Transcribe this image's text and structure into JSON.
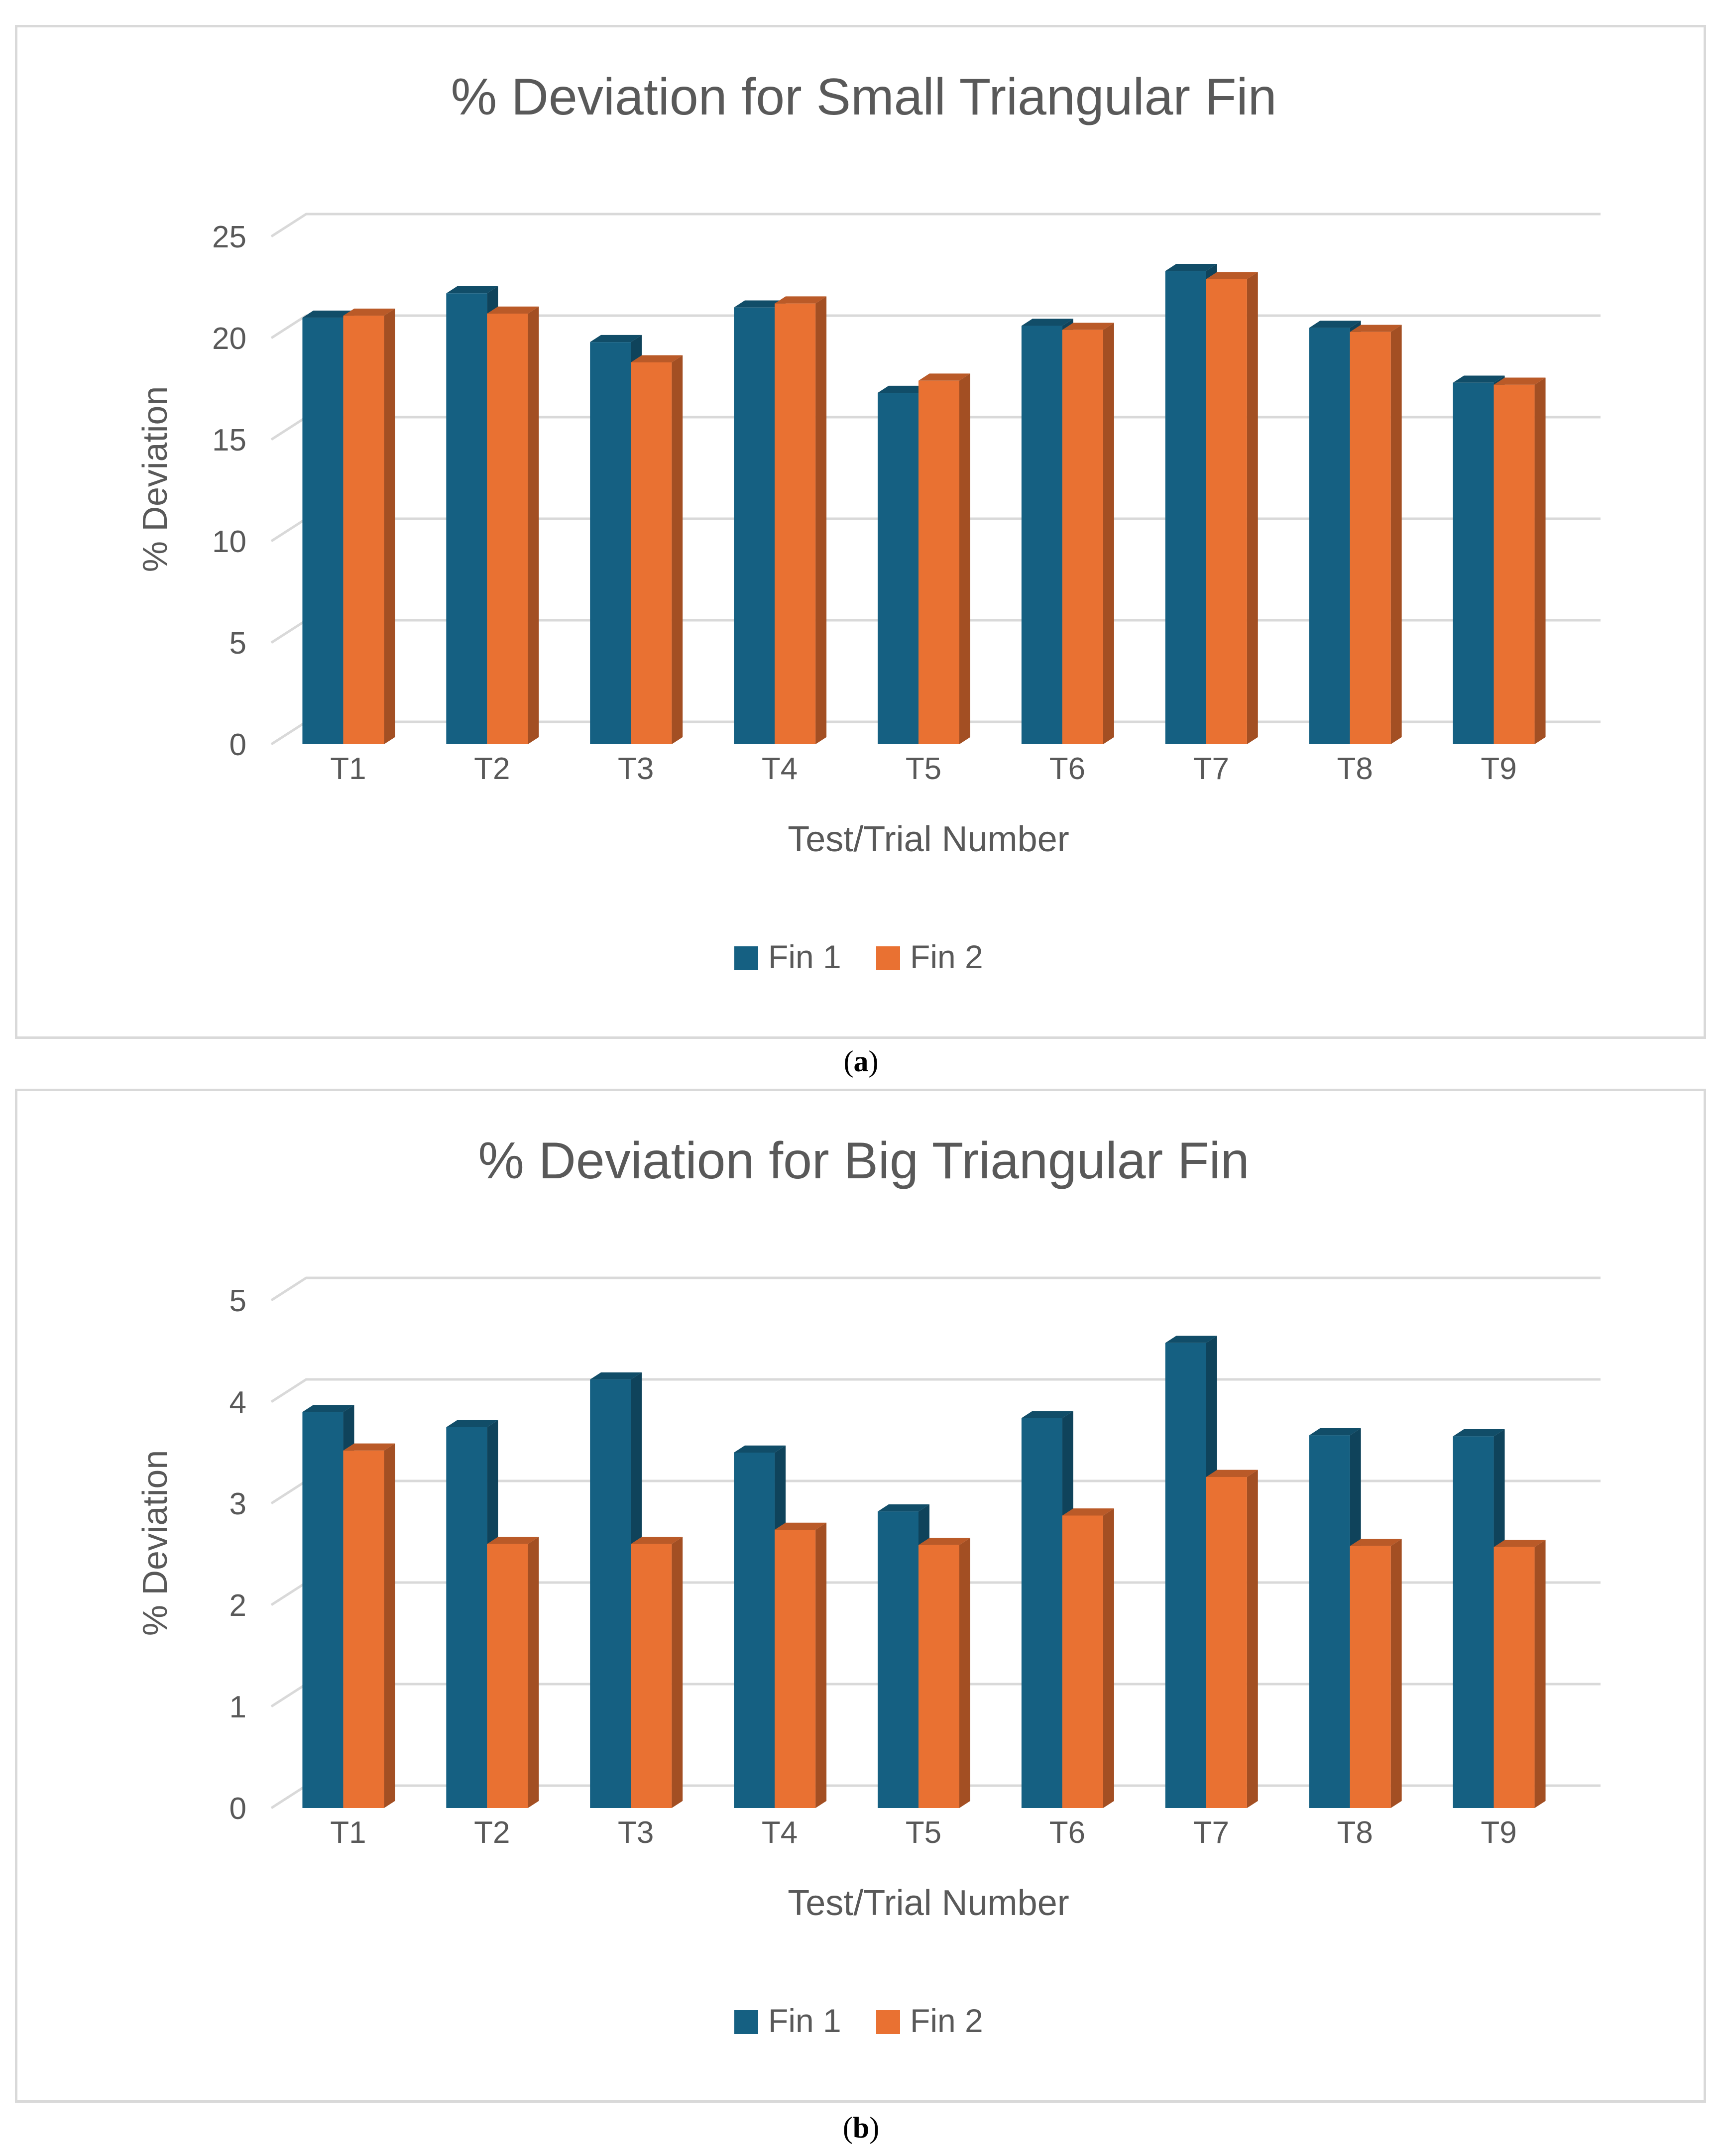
{
  "chart_data": [
    {
      "type": "bar",
      "style": "3d-clustered-column",
      "title": "% Deviation for Small Triangular Fin",
      "xlabel": "Test/Trial Number",
      "ylabel": "% Deviation",
      "categories": [
        "T1",
        "T2",
        "T3",
        "T4",
        "T5",
        "T6",
        "T7",
        "T8",
        "T9"
      ],
      "series": [
        {
          "name": "Fin 1",
          "color": "#156082",
          "values": [
            21.0,
            22.2,
            19.8,
            21.5,
            17.3,
            20.6,
            23.3,
            20.5,
            17.8
          ]
        },
        {
          "name": "Fin 2",
          "color": "#E97132",
          "values": [
            21.1,
            21.2,
            18.8,
            21.7,
            17.9,
            20.4,
            22.9,
            20.3,
            17.7
          ]
        }
      ],
      "ylim": [
        0,
        25
      ],
      "yticks": [
        "0",
        "5",
        "10",
        "15",
        "20",
        "25"
      ],
      "grid": true,
      "legend": "bottom",
      "caption": "a"
    },
    {
      "type": "bar",
      "style": "3d-clustered-column",
      "title": "% Deviation for Big Triangular Fin",
      "xlabel": "Test/Trial Number",
      "ylabel": "% Deviation",
      "categories": [
        "T1",
        "T2",
        "T3",
        "T4",
        "T5",
        "T6",
        "T7",
        "T8",
        "T9"
      ],
      "series": [
        {
          "name": "Fin 1",
          "color": "#156082",
          "values": [
            3.9,
            3.75,
            4.22,
            3.5,
            2.92,
            3.84,
            4.58,
            3.67,
            3.66
          ]
        },
        {
          "name": "Fin 2",
          "color": "#E97132",
          "values": [
            3.52,
            2.6,
            2.6,
            2.74,
            2.59,
            2.88,
            3.26,
            2.58,
            2.57
          ]
        }
      ],
      "ylim": [
        0,
        5
      ],
      "yticks": [
        "0",
        "1",
        "2",
        "3",
        "4",
        "5"
      ],
      "grid": true,
      "legend": "bottom",
      "caption": "b"
    }
  ]
}
